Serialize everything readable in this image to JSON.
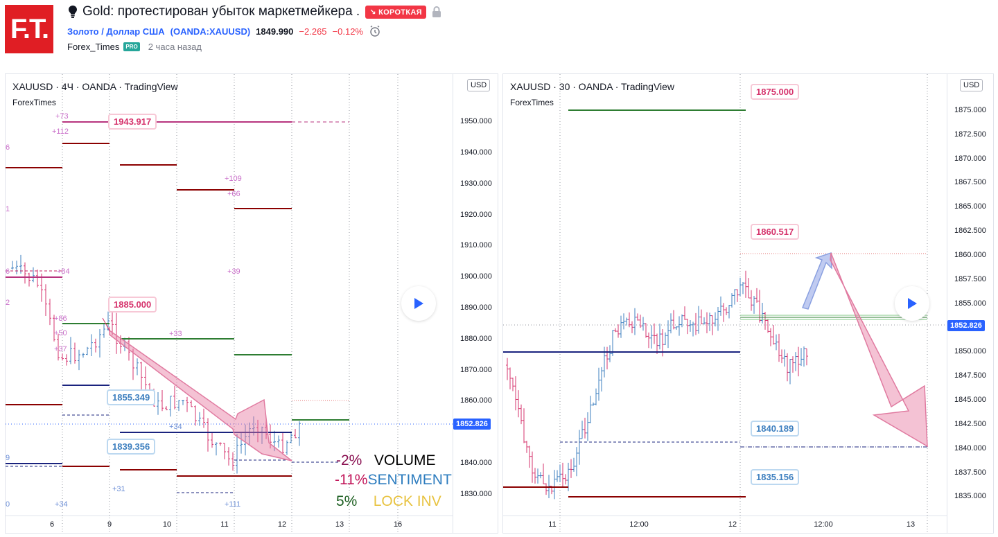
{
  "header": {
    "logo_text": "F.T.",
    "title": "Gold: протестирован убыток маркетмейкера .",
    "badge": "КОРОТКАЯ",
    "symbol_name": "Золото / Доллар США",
    "symbol_code": "(OANDA:XAUUSD)",
    "price": "1849.990",
    "change": "−2.265",
    "change_pct": "−0.12%",
    "author": "Forex_Times",
    "author_badge": "PRO",
    "published": "2 часа назад",
    "icons": [
      "lightbulb-icon",
      "lock-icon",
      "alarm-clock-icon"
    ]
  },
  "left_chart": {
    "title": "XAUUSD · 4Ч · OANDA · TradingView",
    "subtitle": "ForexTimes",
    "currency": "USD",
    "current_price": "1852.826",
    "price_ticks": [
      "1950.000",
      "1940.000",
      "1930.000",
      "1920.000",
      "1910.000",
      "1900.000",
      "1890.000",
      "1880.000",
      "1870.000",
      "1860.000",
      "1850.000",
      "1840.000",
      "1830.000"
    ],
    "x_ticks": [
      "6",
      "9",
      "10",
      "11",
      "12",
      "13",
      "16"
    ],
    "callouts": [
      "1943.917",
      "1885.000",
      "1855.349",
      "1839.356"
    ],
    "small_labels": [
      "+73",
      "+112",
      "6",
      "+109",
      "+66",
      "1",
      "+84",
      "+39",
      "6",
      "2",
      "+86",
      "+50",
      "+33",
      "+37",
      "+34",
      "9",
      "+31",
      "0",
      "+34",
      "+111"
    ],
    "legend": [
      {
        "pct": "-2%",
        "label": "VOLUME",
        "pct_color": "#880e4f",
        "label_color": "#000000"
      },
      {
        "pct": "-11%",
        "label": "SENTIMENT",
        "pct_color": "#c2185b",
        "label_color": "#2e7dbf"
      },
      {
        "pct": "5%",
        "label": "LOCK INV",
        "pct_color": "#1b5e20",
        "label_color": "#e8c341"
      }
    ]
  },
  "right_chart": {
    "title": "XAUUSD · 30 · OANDA · TradingView",
    "subtitle": "ForexTimes",
    "currency": "USD",
    "current_price": "1852.826",
    "price_ticks": [
      "1875.000",
      "1872.500",
      "1870.000",
      "1867.500",
      "1865.000",
      "1862.500",
      "1860.000",
      "1857.500",
      "1855.000",
      "1850.000",
      "1847.500",
      "1845.000",
      "1842.500",
      "1840.000",
      "1837.500",
      "1835.000"
    ],
    "x_ticks": [
      "11",
      "12:00",
      "12",
      "12:00",
      "13"
    ],
    "callouts": [
      "1875.000",
      "1860.517",
      "1840.189",
      "1835.156"
    ]
  },
  "colors": {
    "accent": "#2962ff",
    "down": "#f23645",
    "pink": "#e05a8a",
    "green": "#26a69a"
  }
}
